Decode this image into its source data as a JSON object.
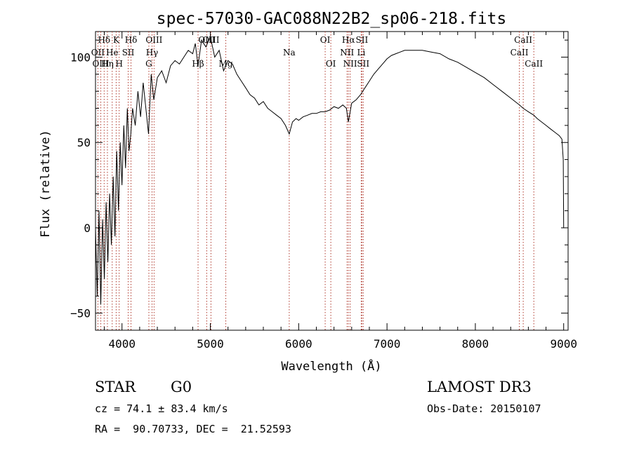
{
  "chart_data": {
    "type": "line",
    "title": "spec-57030-GAC088N22B2_sp06-218.fits",
    "xlabel": "Wavelength (Å)",
    "ylabel": "Flux (relative)",
    "xlim": [
      3700,
      9050
    ],
    "ylim": [
      -60,
      115
    ],
    "xticks": [
      4000,
      5000,
      6000,
      7000,
      8000,
      9000
    ],
    "yticks": [
      -50,
      0,
      50,
      100
    ],
    "series": [
      {
        "name": "flux",
        "x": [
          3700,
          3720,
          3740,
          3760,
          3780,
          3800,
          3820,
          3840,
          3860,
          3880,
          3900,
          3920,
          3940,
          3960,
          3980,
          4000,
          4020,
          4040,
          4060,
          4080,
          4100,
          4120,
          4150,
          4180,
          4210,
          4240,
          4270,
          4300,
          4330,
          4360,
          4400,
          4450,
          4500,
          4550,
          4600,
          4650,
          4700,
          4750,
          4800,
          4830,
          4861,
          4900,
          4950,
          5000,
          5050,
          5100,
          5150,
          5200,
          5250,
          5300,
          5350,
          5400,
          5450,
          5500,
          5550,
          5600,
          5650,
          5700,
          5750,
          5800,
          5850,
          5893,
          5930,
          5970,
          6000,
          6050,
          6100,
          6150,
          6200,
          6250,
          6300,
          6350,
          6400,
          6450,
          6500,
          6540,
          6563,
          6600,
          6650,
          6700,
          6750,
          6800,
          6850,
          6900,
          6950,
          7000,
          7050,
          7100,
          7150,
          7200,
          7300,
          7400,
          7500,
          7600,
          7700,
          7800,
          7900,
          8000,
          8100,
          8200,
          8300,
          8400,
          8500,
          8542,
          8600,
          8662,
          8700,
          8750,
          8800,
          8850,
          8900,
          8950,
          8980,
          8995,
          9000
        ],
        "y": [
          0,
          -40,
          10,
          -45,
          5,
          -30,
          15,
          -20,
          20,
          -10,
          30,
          -5,
          45,
          10,
          50,
          25,
          60,
          35,
          70,
          45,
          55,
          70,
          60,
          80,
          65,
          85,
          70,
          55,
          90,
          75,
          88,
          92,
          85,
          95,
          98,
          96,
          100,
          104,
          102,
          108,
          95,
          110,
          106,
          112,
          100,
          104,
          92,
          98,
          96,
          90,
          86,
          82,
          78,
          76,
          72,
          74,
          70,
          68,
          66,
          64,
          60,
          55,
          62,
          64,
          63,
          65,
          66,
          67,
          67,
          68,
          68,
          69,
          71,
          70,
          72,
          70,
          62,
          73,
          75,
          78,
          82,
          86,
          90,
          93,
          96,
          99,
          101,
          102,
          103,
          104,
          104,
          104,
          103,
          102,
          99,
          97,
          94,
          91,
          88,
          84,
          80,
          76,
          72,
          70,
          68,
          66,
          64,
          62,
          60,
          58,
          56,
          54,
          52,
          40,
          0
        ]
      }
    ],
    "lines": [
      {
        "name": "Hδ",
        "wavelength": 3798,
        "row": 1
      },
      {
        "name": "OII",
        "wavelength": 3727,
        "row": 2
      },
      {
        "name": "OIII",
        "wavelength": 3760,
        "row": 3
      },
      {
        "name": "He",
        "wavelength": 3889,
        "row": 2
      },
      {
        "name": "Hη",
        "wavelength": 3835,
        "row": 3
      },
      {
        "name": "K",
        "wavelength": 3934,
        "row": 1
      },
      {
        "name": "SII",
        "wavelength": 4070,
        "row": 2
      },
      {
        "name": "H",
        "wavelength": 3968,
        "row": 3
      },
      {
        "name": "Hδ",
        "wavelength": 4102,
        "row": 1
      },
      {
        "name": "OIII",
        "wavelength": 4363,
        "row": 1
      },
      {
        "name": "Hγ",
        "wavelength": 4340,
        "row": 2
      },
      {
        "name": "G",
        "wavelength": 4304,
        "row": 3
      },
      {
        "name": "Hβ",
        "wavelength": 4861,
        "row": 3
      },
      {
        "name": "OIII",
        "wavelength": 4959,
        "row": 1
      },
      {
        "name": "OIII",
        "wavelength": 5007,
        "row": 1
      },
      {
        "name": "Mg",
        "wavelength": 5175,
        "row": 3
      },
      {
        "name": "Na",
        "wavelength": 5893,
        "row": 2
      },
      {
        "name": "OI",
        "wavelength": 6300,
        "row": 1
      },
      {
        "name": "OI",
        "wavelength": 6364,
        "row": 3
      },
      {
        "name": "Hα",
        "wavelength": 6563,
        "row": 1
      },
      {
        "name": "NII",
        "wavelength": 6548,
        "row": 2
      },
      {
        "name": "NII",
        "wavelength": 6583,
        "row": 3
      },
      {
        "name": "SII",
        "wavelength": 6716,
        "row": 1
      },
      {
        "name": "Li",
        "wavelength": 6708,
        "row": 2
      },
      {
        "name": "SII",
        "wavelength": 6731,
        "row": 3
      },
      {
        "name": "CaII",
        "wavelength": 8542,
        "row": 1
      },
      {
        "name": "CaII",
        "wavelength": 8498,
        "row": 2
      },
      {
        "name": "CaII",
        "wavelength": 8662,
        "row": 3
      }
    ],
    "line_color": "#b03a2e"
  },
  "info": {
    "object_class": "STAR",
    "subclass": "G0",
    "survey": "LAMOST DR3",
    "cz": "cz = 74.1 ± 83.4 km/s",
    "obs_date": "Obs-Date: 20150107",
    "coords": "RA =  90.70733, DEC =  21.52593"
  }
}
